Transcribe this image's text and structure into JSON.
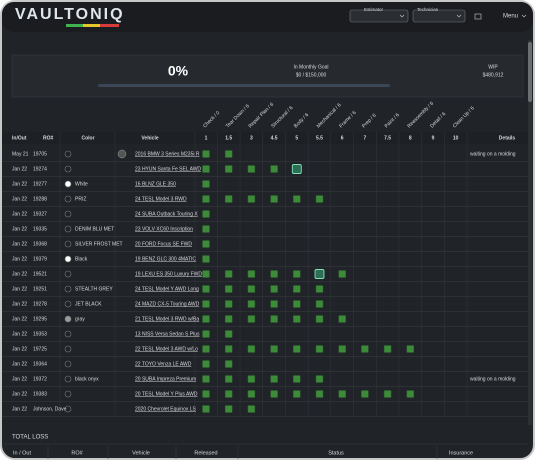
{
  "header": {
    "logo": "VAULTONIQ",
    "estimator": "Estimator",
    "technician": "Technician",
    "menu": "Menu"
  },
  "summary": {
    "percent": "0%",
    "goal_label": "In Monthly Goal",
    "goal_value": "$0 / $150,000",
    "wip_label": "WIP",
    "wip_value": "$480,912"
  },
  "table": {
    "columns": [
      "In/Out",
      "RO#",
      "Color",
      "Vehicle"
    ],
    "details": "Details",
    "stages": [
      "Check / 0",
      "Tear Down / 6",
      "Repair Plan / 6",
      "Structural / 6",
      "Body / 6",
      "Mechanical / 6",
      "Frame / 6",
      "Prep / 6",
      "Paint / 6",
      "Reassembly / 6",
      "Detail / 6",
      "Clean Up / 6"
    ],
    "stage_numbers": [
      "1",
      "1.5",
      "3",
      "4.5",
      "5",
      "5.5",
      "6",
      "7",
      "7.5",
      "8",
      "9",
      "10"
    ],
    "rows": [
      {
        "date": "May 21",
        "ro": "19705",
        "swatch": null,
        "color": "",
        "vehicle": "2016 BMW 3 Series M235i R",
        "details": "waiting on a molding",
        "status": [
          1,
          1,
          0,
          0,
          0,
          0,
          0,
          0,
          0,
          0,
          0,
          0
        ]
      },
      {
        "date": "Jan 22",
        "ro": "19274",
        "swatch": null,
        "color": "",
        "vehicle": "23 HYUN Santa Fe SEL AWD",
        "details": "",
        "status": [
          1,
          1,
          1,
          1,
          2,
          0,
          0,
          0,
          0,
          0,
          0,
          0
        ]
      },
      {
        "date": "Jan 22",
        "ro": "19277",
        "swatch": "#ffffff",
        "color": "White",
        "vehicle": "16 BLNZ GLE 350",
        "details": "",
        "status": [
          1,
          0,
          0,
          0,
          0,
          0,
          0,
          0,
          0,
          0,
          0,
          0
        ]
      },
      {
        "date": "Jan 22",
        "ro": "19288",
        "swatch": null,
        "color": "PRIZ",
        "vehicle": "24 TESL Model 3 RWD",
        "details": "",
        "status": [
          1,
          1,
          1,
          1,
          1,
          1,
          0,
          0,
          0,
          0,
          0,
          0
        ]
      },
      {
        "date": "Jan 22",
        "ro": "19327",
        "swatch": null,
        "color": "",
        "vehicle": "24 SUBA Outback Touring X",
        "details": "",
        "status": [
          1,
          0,
          0,
          0,
          0,
          0,
          0,
          0,
          0,
          0,
          0,
          0
        ]
      },
      {
        "date": "Jan 22",
        "ro": "19335",
        "swatch": null,
        "color": "DENIM BLU MET",
        "vehicle": "23 VOLV XC60 Inscription",
        "details": "",
        "status": [
          1,
          0,
          0,
          0,
          0,
          0,
          0,
          0,
          0,
          0,
          0,
          0
        ]
      },
      {
        "date": "Jan 22",
        "ro": "19368",
        "swatch": null,
        "color": "SILVER FROST MET",
        "vehicle": "20 FORD Focus SE FWD",
        "details": "",
        "status": [
          1,
          0,
          0,
          0,
          0,
          0,
          0,
          0,
          0,
          0,
          0,
          0
        ]
      },
      {
        "date": "Jan 22",
        "ro": "19379",
        "swatch": "#ffffff",
        "color": "Black",
        "vehicle": "19 BENZ GLC 300 4MATIC",
        "details": "",
        "status": [
          1,
          0,
          0,
          0,
          0,
          0,
          0,
          0,
          0,
          0,
          0,
          0
        ]
      },
      {
        "date": "Jan 22",
        "ro": "19521",
        "swatch": null,
        "color": "",
        "vehicle": "19 LEXU ES 350 Luxury FWD",
        "details": "",
        "status": [
          1,
          1,
          1,
          1,
          1,
          2,
          1,
          0,
          0,
          0,
          0,
          0
        ]
      },
      {
        "date": "Jan 22",
        "ro": "19251",
        "swatch": null,
        "color": "STEALTH GREY",
        "vehicle": "24 TESL Model Y AWD Long",
        "details": "",
        "status": [
          1,
          1,
          1,
          1,
          1,
          1,
          0,
          0,
          0,
          0,
          0,
          0
        ]
      },
      {
        "date": "Jan 22",
        "ro": "19278",
        "swatch": null,
        "color": "JET BLACK",
        "vehicle": "24 MAZD CX-5 Touring AWD",
        "details": "",
        "status": [
          1,
          1,
          1,
          1,
          1,
          1,
          0,
          0,
          0,
          0,
          0,
          0
        ]
      },
      {
        "date": "Jan 22",
        "ro": "19295",
        "swatch": "#9a9a9a",
        "color": "gray",
        "vehicle": "21 TESL Model 3 RWD w/Ba",
        "details": "",
        "status": [
          1,
          1,
          1,
          1,
          1,
          1,
          1,
          0,
          0,
          0,
          0,
          0
        ]
      },
      {
        "date": "Jan 22",
        "ro": "19353",
        "swatch": null,
        "color": "",
        "vehicle": "13 NISS Versa Sedan S Plus",
        "details": "",
        "status": [
          1,
          1,
          0,
          0,
          0,
          0,
          0,
          0,
          0,
          0,
          0,
          0
        ]
      },
      {
        "date": "Jan 22",
        "ro": "19725",
        "swatch": null,
        "color": "",
        "vehicle": "22 TESL Model 3 AWD w/Lo",
        "details": "",
        "status": [
          1,
          1,
          1,
          1,
          1,
          1,
          1,
          1,
          1,
          1,
          0,
          0
        ]
      },
      {
        "date": "Jan 22",
        "ro": "19364",
        "swatch": null,
        "color": "",
        "vehicle": "22 TOYO Venza LE AWD",
        "details": "",
        "status": [
          1,
          1,
          0,
          0,
          0,
          0,
          0,
          0,
          0,
          0,
          0,
          0
        ]
      },
      {
        "date": "Jan 22",
        "ro": "19372",
        "swatch": null,
        "color": "black onyx",
        "vehicle": "20 SUBA Impreza Premium",
        "details": "waiting on a molding",
        "status": [
          1,
          1,
          1,
          1,
          1,
          1,
          0,
          0,
          0,
          0,
          0,
          0
        ]
      },
      {
        "date": "Jan 22",
        "ro": "19383",
        "swatch": null,
        "color": "",
        "vehicle": "20 TESL Model Y Plus AWD",
        "details": "",
        "status": [
          1,
          1,
          1,
          1,
          1,
          1,
          1,
          1,
          1,
          1,
          0,
          0
        ]
      },
      {
        "date": "Jan 22",
        "ro": "Johnson, Dave",
        "swatch": null,
        "color": "",
        "vehicle": "2020 Chevrolet Equinox LS",
        "details": "",
        "status": [
          1,
          1,
          1,
          0,
          0,
          0,
          0,
          0,
          0,
          0,
          0,
          0
        ]
      }
    ]
  },
  "total_loss": {
    "title": "TOTAL LOSS",
    "columns": [
      "In / Out",
      "RO#",
      "Vehicle",
      "Released",
      "Status",
      "Insurance"
    ]
  }
}
